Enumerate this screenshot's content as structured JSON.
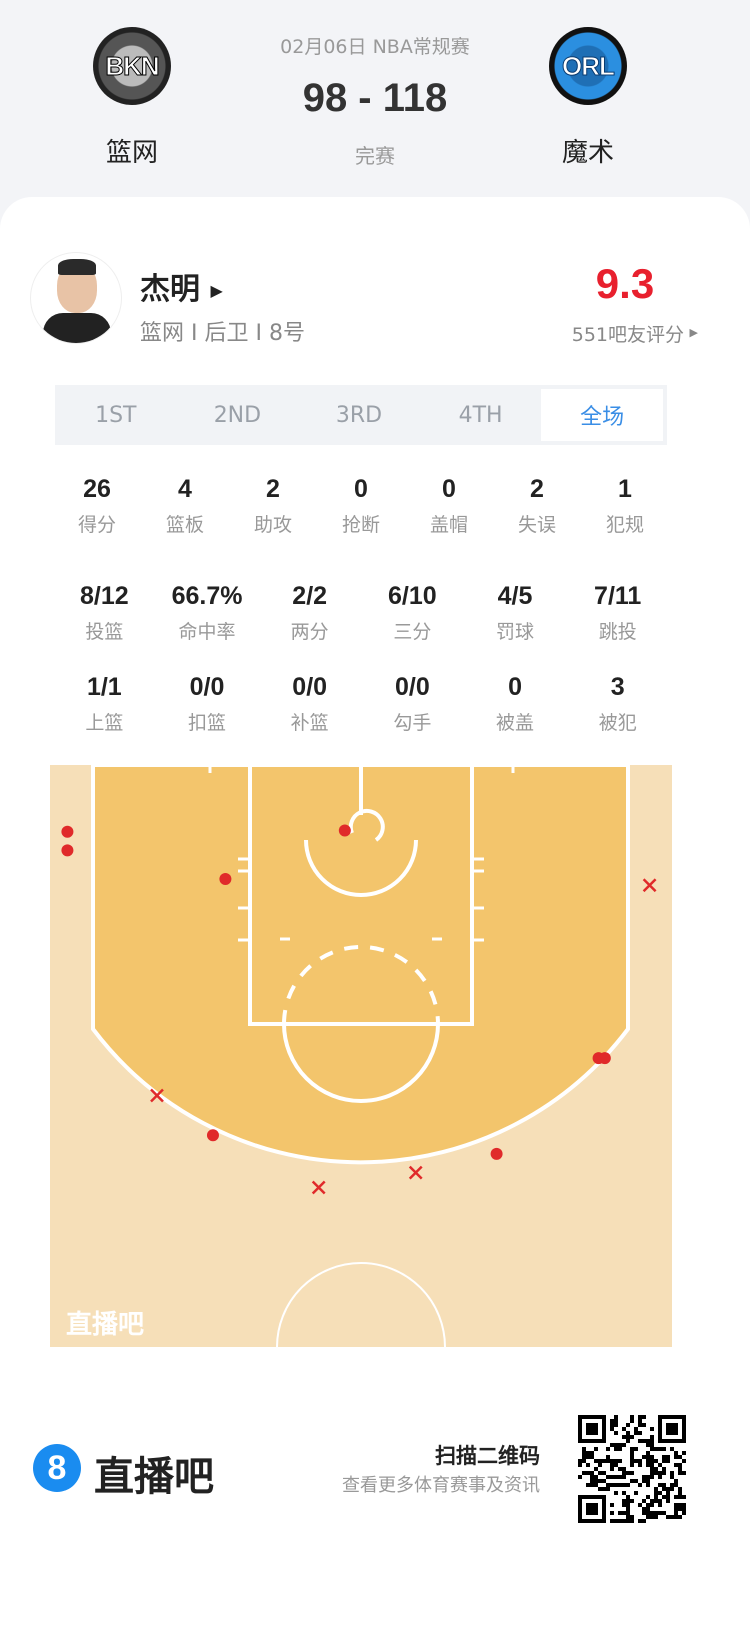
{
  "match": {
    "date_league": "02月06日 NBA常规赛",
    "score": "98 - 118",
    "status": "完赛",
    "home": {
      "name": "篮网",
      "logo_text": "BKN"
    },
    "away": {
      "name": "魔术",
      "logo_text": "ORL"
    }
  },
  "player": {
    "name": "杰明",
    "info": "篮网 I 后卫 I 8号",
    "rating": "9.3",
    "rating_label": "551吧友评分",
    "rating_color": "#e8202e"
  },
  "tabs": [
    {
      "label": "1ST"
    },
    {
      "label": "2ND"
    },
    {
      "label": "3RD"
    },
    {
      "label": "4TH"
    },
    {
      "label": "全场",
      "active": true
    }
  ],
  "accent_color": "#3a8ee6",
  "stats_row1": [
    {
      "v": "26",
      "l": "得分"
    },
    {
      "v": "4",
      "l": "篮板"
    },
    {
      "v": "2",
      "l": "助攻"
    },
    {
      "v": "0",
      "l": "抢断"
    },
    {
      "v": "0",
      "l": "盖帽"
    },
    {
      "v": "2",
      "l": "失误"
    },
    {
      "v": "1",
      "l": "犯规"
    }
  ],
  "stats_row2": [
    {
      "v": "8/12",
      "l": "投篮"
    },
    {
      "v": "66.7%",
      "l": "命中率"
    },
    {
      "v": "2/2",
      "l": "两分"
    },
    {
      "v": "6/10",
      "l": "三分"
    },
    {
      "v": "4/5",
      "l": "罚球"
    },
    {
      "v": "7/11",
      "l": "跳投"
    }
  ],
  "stats_row3": [
    {
      "v": "1/1",
      "l": "上篮"
    },
    {
      "v": "0/0",
      "l": "扣篮"
    },
    {
      "v": "0/0",
      "l": "补篮"
    },
    {
      "v": "0/0",
      "l": "勾手"
    },
    {
      "v": "0",
      "l": "被盖"
    },
    {
      "v": "3",
      "l": "被犯"
    }
  ],
  "shot_chart": {
    "watermark": "直播吧",
    "made_color": "#e02a2a",
    "units": "feet from basket (x lateral, y toward midcourt)",
    "shots": [
      {
        "x": -23.6,
        "y": 0.3,
        "made": true
      },
      {
        "x": -23.6,
        "y": 1.8,
        "made": true
      },
      {
        "x": -10.9,
        "y": 4.1,
        "made": true
      },
      {
        "x": -1.3,
        "y": 0.2,
        "made": true
      },
      {
        "x": -11.9,
        "y": 24.7,
        "made": true
      },
      {
        "x": 10.9,
        "y": 26.2,
        "made": true
      },
      {
        "x": 19.1,
        "y": 18.5,
        "made": true
      },
      {
        "x": 19.6,
        "y": 18.5,
        "made": true
      },
      {
        "x": -16.4,
        "y": 21.5,
        "made": false
      },
      {
        "x": -3.4,
        "y": 28.9,
        "made": false
      },
      {
        "x": 4.4,
        "y": 27.7,
        "made": false
      },
      {
        "x": 23.2,
        "y": 4.6,
        "made": false
      }
    ]
  },
  "footer": {
    "brand_icon": "8",
    "brand": "直播吧",
    "scan_title": "扫描二维码",
    "scan_sub": "查看更多体育赛事及资讯"
  }
}
